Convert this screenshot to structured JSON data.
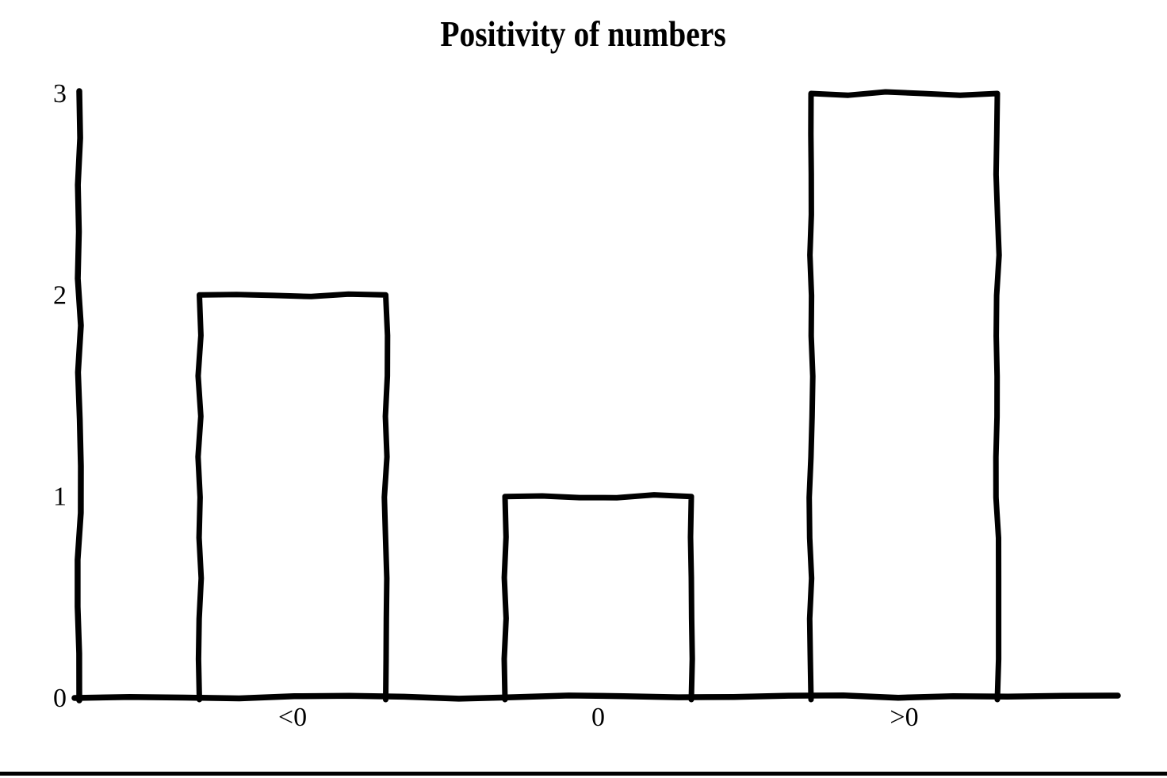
{
  "chart_data": {
    "type": "bar",
    "title": "Positivity of numbers",
    "categories": [
      "<0",
      "0",
      ">0"
    ],
    "values": [
      2,
      1,
      3
    ],
    "yticks": [
      "0",
      "1",
      "2",
      "3"
    ],
    "ylim": [
      0,
      3
    ],
    "xlabel": "",
    "ylabel": "",
    "grid": false,
    "legend": "none",
    "style": "hand-drawn-outline",
    "colors": {
      "stroke": "#000000",
      "background": "#ffffff",
      "bar_fill": "#ffffff"
    }
  },
  "page": {
    "has_bottom_rule": true
  }
}
